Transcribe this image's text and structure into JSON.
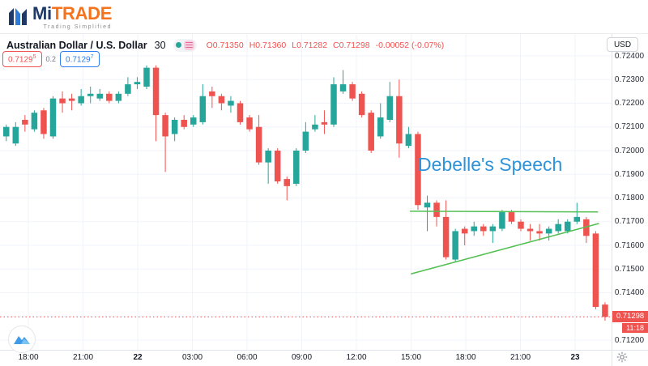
{
  "brand": {
    "mi": "Mi",
    "trade": "TRADE",
    "tagline": "Trading Simplified"
  },
  "symbol_header": {
    "title": "Australian Dollar / U.S. Dollar",
    "interval": "30",
    "ohlc": {
      "open": "O0.71350",
      "high": "H0.71360",
      "low": "L0.71282",
      "close": "C0.71298",
      "change": "-0.00052 (-0.07%)"
    }
  },
  "quote": {
    "bid_main": "0.7129",
    "bid_sup": "5",
    "spread": "0.2",
    "ask_main": "0.7129",
    "ask_sup": "7"
  },
  "price_axis": {
    "currency": "USD",
    "labels": [
      "0.72400",
      "0.72300",
      "0.72200",
      "0.72100",
      "0.72000",
      "0.71900",
      "0.71800",
      "0.71700",
      "0.71600",
      "0.71500",
      "0.71400",
      "0.71200"
    ],
    "last_price_label": "0.71298",
    "countdown": "11:18"
  },
  "time_axis": {
    "ticks": [
      {
        "label": "18:00",
        "bold": false
      },
      {
        "label": "21:00",
        "bold": false
      },
      {
        "label": "22",
        "bold": true
      },
      {
        "label": "03:00",
        "bold": false
      },
      {
        "label": "06:00",
        "bold": false
      },
      {
        "label": "09:00",
        "bold": false
      },
      {
        "label": "12:00",
        "bold": false
      },
      {
        "label": "15:00",
        "bold": false
      },
      {
        "label": "18:00",
        "bold": false
      },
      {
        "label": "21:00",
        "bold": false
      },
      {
        "label": "23",
        "bold": true
      }
    ]
  },
  "theme": {
    "css_vars": {
      "up": "#26a69a",
      "down": "#ef5350",
      "ask-blue": "#2d7ff0",
      "trend-green": "#54c053",
      "annotation-blue": "#2e93d9",
      "brand-navy": "#1f3a68",
      "brand-orange": "#f4731f",
      "grid": "#f0f3fa",
      "sep": "#e0e3eb"
    }
  },
  "chart_data": {
    "type": "candlestick",
    "title": "Australian Dollar / U.S. Dollar 30-minute chart",
    "symbol": "AUD/USD",
    "interval_minutes": 30,
    "y_axis": {
      "min": 0.712,
      "max": 0.724,
      "tick_step": 0.001,
      "currency": "USD"
    },
    "x_tick_labels": [
      "18:00",
      "21:00",
      "22",
      "03:00",
      "06:00",
      "09:00",
      "12:00",
      "15:00",
      "18:00",
      "21:00",
      "23"
    ],
    "grid": true,
    "up_color": "#26a69a",
    "down_color": "#ef5350",
    "last_price": 0.71298,
    "countdown": "11:18",
    "ohlc_current": {
      "open": 0.7135,
      "high": 0.7136,
      "low": 0.71282,
      "close": 0.71298,
      "change": -0.00052,
      "change_pct": "-0.07%"
    },
    "annotation": {
      "text": "Debelle's Speech"
    },
    "trend_lines": [
      {
        "i1": 43.2,
        "p1": 0.71744,
        "i2": 63.2,
        "p2": 0.71741
      },
      {
        "i1": 43.3,
        "p1": 0.7148,
        "i2": 63.3,
        "p2": 0.71692
      }
    ],
    "candles": [
      [
        0.7206,
        0.7211,
        0.7204,
        0.721
      ],
      [
        0.7203,
        0.7212,
        0.7202,
        0.721
      ],
      [
        0.7213,
        0.7215,
        0.7208,
        0.7211
      ],
      [
        0.7209,
        0.7217,
        0.7208,
        0.7216
      ],
      [
        0.7217,
        0.7218,
        0.7205,
        0.7207
      ],
      [
        0.7206,
        0.7223,
        0.7205,
        0.7222
      ],
      [
        0.7222,
        0.7225,
        0.7216,
        0.722
      ],
      [
        0.7222,
        0.7224,
        0.7217,
        0.7221
      ],
      [
        0.722,
        0.7226,
        0.7219,
        0.7223
      ],
      [
        0.7223,
        0.7227,
        0.722,
        0.7224
      ],
      [
        0.7222,
        0.7226,
        0.7221,
        0.7224
      ],
      [
        0.7224,
        0.7225,
        0.722,
        0.7221
      ],
      [
        0.7221,
        0.7225,
        0.722,
        0.7224
      ],
      [
        0.7224,
        0.7231,
        0.7223,
        0.7228
      ],
      [
        0.7228,
        0.7231,
        0.7226,
        0.7229
      ],
      [
        0.7227,
        0.7236,
        0.7226,
        0.7235
      ],
      [
        0.7235,
        0.7236,
        0.7204,
        0.7215
      ],
      [
        0.7215,
        0.7216,
        0.7191,
        0.7206
      ],
      [
        0.7207,
        0.7214,
        0.7204,
        0.7213
      ],
      [
        0.7213,
        0.7215,
        0.7209,
        0.721
      ],
      [
        0.7211,
        0.7215,
        0.721,
        0.7214
      ],
      [
        0.7212,
        0.7228,
        0.7211,
        0.7223
      ],
      [
        0.7225,
        0.7227,
        0.7218,
        0.7223
      ],
      [
        0.7223,
        0.7224,
        0.7217,
        0.722
      ],
      [
        0.7219,
        0.7223,
        0.7216,
        0.7221
      ],
      [
        0.722,
        0.7221,
        0.7211,
        0.7212
      ],
      [
        0.7214,
        0.7215,
        0.7208,
        0.7209
      ],
      [
        0.721,
        0.7215,
        0.7194,
        0.7195
      ],
      [
        0.7195,
        0.7201,
        0.7186,
        0.72
      ],
      [
        0.72,
        0.7201,
        0.7186,
        0.7187
      ],
      [
        0.7188,
        0.7189,
        0.7179,
        0.7185
      ],
      [
        0.7186,
        0.7201,
        0.7185,
        0.72
      ],
      [
        0.72,
        0.7212,
        0.7199,
        0.7208
      ],
      [
        0.7209,
        0.7215,
        0.7208,
        0.7211
      ],
      [
        0.7212,
        0.7217,
        0.7207,
        0.7211
      ],
      [
        0.7211,
        0.7231,
        0.721,
        0.7228
      ],
      [
        0.7225,
        0.7234,
        0.7224,
        0.7228
      ],
      [
        0.7228,
        0.7229,
        0.7221,
        0.7222
      ],
      [
        0.7224,
        0.7225,
        0.7214,
        0.7215
      ],
      [
        0.7216,
        0.7217,
        0.7199,
        0.72
      ],
      [
        0.7206,
        0.722,
        0.7205,
        0.7214
      ],
      [
        0.7213,
        0.7229,
        0.7212,
        0.7223
      ],
      [
        0.7223,
        0.723,
        0.7197,
        0.7203
      ],
      [
        0.7202,
        0.721,
        0.7201,
        0.7207
      ],
      [
        0.7207,
        0.7208,
        0.7175,
        0.7177
      ],
      [
        0.7176,
        0.7181,
        0.7166,
        0.7178
      ],
      [
        0.7178,
        0.7179,
        0.7168,
        0.7172
      ],
      [
        0.7172,
        0.7179,
        0.7154,
        0.7155
      ],
      [
        0.7154,
        0.7167,
        0.7153,
        0.7166
      ],
      [
        0.7167,
        0.7168,
        0.716,
        0.7165
      ],
      [
        0.7166,
        0.717,
        0.7164,
        0.7168
      ],
      [
        0.7168,
        0.7169,
        0.7164,
        0.7166
      ],
      [
        0.7166,
        0.7169,
        0.7161,
        0.7168
      ],
      [
        0.7167,
        0.7175,
        0.7166,
        0.7174
      ],
      [
        0.7174,
        0.7175,
        0.7169,
        0.717
      ],
      [
        0.717,
        0.7171,
        0.7166,
        0.7167
      ],
      [
        0.7167,
        0.7169,
        0.7162,
        0.7166
      ],
      [
        0.7166,
        0.7169,
        0.7162,
        0.7165
      ],
      [
        0.7165,
        0.7168,
        0.7162,
        0.7167
      ],
      [
        0.7166,
        0.7171,
        0.7165,
        0.7169
      ],
      [
        0.7166,
        0.7171,
        0.7165,
        0.717
      ],
      [
        0.717,
        0.7178,
        0.7169,
        0.7172
      ],
      [
        0.7171,
        0.7172,
        0.7161,
        0.7164
      ],
      [
        0.7165,
        0.7166,
        0.7133,
        0.7134
      ],
      [
        0.7135,
        0.7136,
        0.71282,
        0.71298
      ]
    ]
  }
}
